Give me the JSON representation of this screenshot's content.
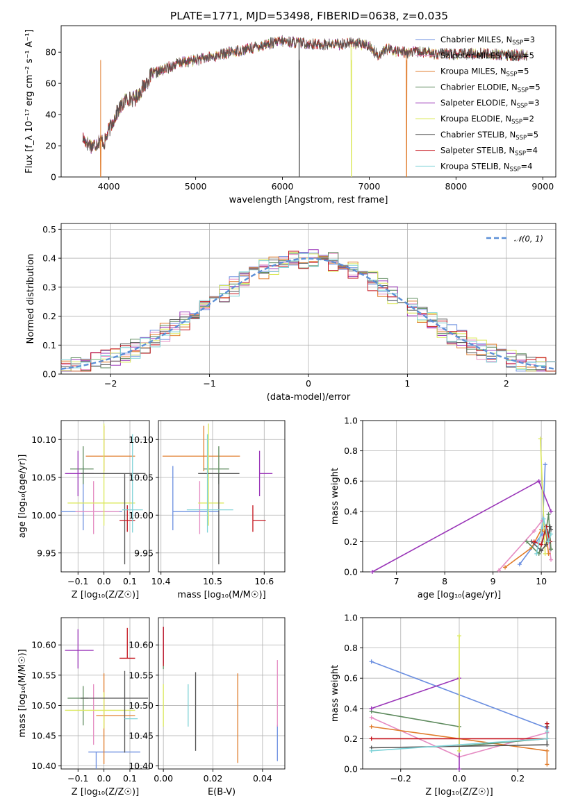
{
  "figure": {
    "title": "PLATE=1771, MJD=53498, FIBERID=0638, z=0.035"
  },
  "colors": {
    "Chabrier MILES": "#6a8ee0",
    "Salpeter MILES": "#e58bc2",
    "Kroupa MILES": "#e07b2a",
    "Chabrier ELODIE": "#5d8a5d",
    "Salpeter ELODIE": "#9a35b8",
    "Kroupa ELODIE": "#dbe85a",
    "Chabrier STELIB": "#555555",
    "Salpeter STELIB": "#c4131c",
    "Kroupa STELIB": "#7fd3d8"
  },
  "chart_data": [
    {
      "id": "spectrum",
      "type": "line",
      "title": "PLATE=1771, MJD=53498, FIBERID=0638, z=0.035",
      "xlabel": "wavelength [Angstrom, rest frame]",
      "ylabel": "Flux [f_λ 10⁻¹⁷ erg cm⁻² s⁻¹ A⁻¹]",
      "xlim": [
        3450,
        9150
      ],
      "ylim": [
        0,
        97
      ],
      "xticks": [
        4000,
        5000,
        6000,
        7000,
        8000,
        9000
      ],
      "yticks": [
        0,
        20,
        40,
        60,
        80
      ],
      "grid": false,
      "legend_position": "top-right",
      "legend": [
        {
          "name": "Chabrier MILES, N",
          "sub": "SSP",
          "suffix": "=3"
        },
        {
          "name": "Salpeter MILES, N",
          "sub": "SSP",
          "suffix": "=5"
        },
        {
          "name": "Kroupa MILES, N",
          "sub": "SSP",
          "suffix": "=5"
        },
        {
          "name": "Chabrier ELODIE, N",
          "sub": "SSP",
          "suffix": "=5"
        },
        {
          "name": "Salpeter ELODIE, N",
          "sub": "SSP",
          "suffix": "=3"
        },
        {
          "name": "Kroupa ELODIE, N",
          "sub": "SSP",
          "suffix": "=2"
        },
        {
          "name": "Chabrier STELIB, N",
          "sub": "SSP",
          "suffix": "=5"
        },
        {
          "name": "Salpeter STELIB, N",
          "sub": "SSP",
          "suffix": "=4"
        },
        {
          "name": "Kroupa STELIB, N",
          "sub": "SSP",
          "suffix": "=4"
        }
      ],
      "continuum_x": [
        3700,
        3750,
        3800,
        3850,
        3900,
        3950,
        4000,
        4100,
        4200,
        4300,
        4400,
        4500,
        4600,
        4800,
        5000,
        5200,
        5400,
        5600,
        5800,
        6000,
        6200,
        6400,
        6600,
        6800,
        7000,
        7100,
        7200,
        7400,
        7600,
        7800,
        8000,
        8200,
        8400,
        8600,
        8800
      ],
      "continuum_y": [
        25,
        22,
        20,
        21,
        24,
        22,
        30,
        42,
        50,
        50,
        58,
        66,
        68,
        73,
        75,
        77,
        80,
        82,
        85,
        87,
        86,
        85,
        85,
        86,
        84,
        78,
        82,
        80,
        80,
        79,
        79,
        79,
        79,
        78,
        78
      ],
      "drops": [
        {
          "x": 3905,
          "series": "Kroupa MILES"
        },
        {
          "x": 6195,
          "series": "Chabrier STELIB"
        },
        {
          "x": 6795,
          "series": "Kroupa ELODIE"
        },
        {
          "x": 7430,
          "series": "Kroupa MILES"
        }
      ]
    },
    {
      "id": "residual_histogram",
      "type": "line",
      "xlabel": "(data-model)/error",
      "ylabel": "Normed distribution",
      "xlim": [
        -2.5,
        2.5
      ],
      "ylim": [
        0,
        0.52
      ],
      "xticks": [
        -2,
        -1,
        0,
        1,
        2
      ],
      "yticks": [
        0.0,
        0.1,
        0.2,
        0.3,
        0.4,
        0.5
      ],
      "grid": true,
      "legend_position": "top-right",
      "reference_label": "𝒩(0, 1)",
      "bin_width": 0.1
    },
    {
      "id": "age_vs_Z",
      "type": "scatter",
      "xlabel": "Z [log₁₀(Z/Z☉)]",
      "ylabel": "age  [log₁₀(age/yr)]",
      "xlim": [
        -0.165,
        0.175
      ],
      "ylim": [
        9.925,
        10.125
      ],
      "xticks": [
        -0.1,
        0.0,
        0.1
      ],
      "yticks": [
        9.95,
        10.0,
        10.05,
        10.1
      ],
      "grid": true,
      "points": [
        {
          "series": "Chabrier MILES",
          "x": -0.08,
          "y": 10.005,
          "xerr": [
            0.1,
            0.15
          ],
          "yerr": [
            0.025,
            0.06
          ]
        },
        {
          "series": "Salpeter MILES",
          "x": -0.04,
          "y": 10.005,
          "xerr": [
            0.07,
            0.1
          ],
          "yerr": [
            0.03,
            0.04
          ]
        },
        {
          "series": "Kroupa MILES",
          "x": 0.0,
          "y": 10.078,
          "xerr": [
            0.07,
            0.12
          ],
          "yerr": [
            0.02,
            0.04
          ]
        },
        {
          "series": "Chabrier ELODIE",
          "x": -0.08,
          "y": 10.061,
          "xerr": [
            0.05,
            0.04
          ],
          "yerr": [
            0.02,
            0.03
          ]
        },
        {
          "series": "Salpeter ELODIE",
          "x": -0.1,
          "y": 10.055,
          "xerr": [
            0.05,
            0.06
          ],
          "yerr": [
            0.03,
            0.03
          ]
        },
        {
          "series": "Kroupa ELODIE",
          "x": 0.0,
          "y": 10.016,
          "xerr": [
            0.14,
            0.12
          ],
          "yerr": [
            0.03,
            0.105
          ]
        },
        {
          "series": "Chabrier STELIB",
          "x": 0.08,
          "y": 10.055,
          "xerr": [
            0.17,
            0.08
          ],
          "yerr": [
            0.12,
            0.0
          ]
        },
        {
          "series": "Salpeter STELIB",
          "x": 0.09,
          "y": 9.993,
          "xerr": [
            0.03,
            0.03
          ],
          "yerr": [
            0.015,
            0.02
          ]
        },
        {
          "series": "Kroupa STELIB",
          "x": 0.11,
          "y": 10.007,
          "xerr": [
            0.04,
            0.04
          ],
          "yerr": [
            0.03,
            0.1
          ]
        }
      ]
    },
    {
      "id": "age_vs_mass",
      "type": "scatter",
      "xlabel": "mass [log₁₀(M/M☉)]",
      "ylabel": "",
      "xlim": [
        10.395,
        10.64
      ],
      "ylim": [
        9.925,
        10.125
      ],
      "xticks": [
        10.4,
        10.5,
        10.6
      ],
      "yticks": [
        9.95,
        10.0,
        10.05,
        10.1
      ],
      "grid": true,
      "points": [
        {
          "series": "Chabrier MILES",
          "x": 10.423,
          "y": 10.005,
          "xerr": [
            0.0,
            0.09
          ],
          "yerr": [
            0.025,
            0.06
          ]
        },
        {
          "series": "Salpeter MILES",
          "x": 10.475,
          "y": 10.005,
          "xerr": [
            0.0,
            0.0
          ],
          "yerr": [
            0.03,
            0.04
          ]
        },
        {
          "series": "Kroupa MILES",
          "x": 10.483,
          "y": 10.078,
          "xerr": [
            0.08,
            0.07
          ],
          "yerr": [
            0.02,
            0.04
          ]
        },
        {
          "series": "Chabrier ELODIE",
          "x": 10.512,
          "y": 10.061,
          "xerr": [
            0.03,
            0.02
          ],
          "yerr": [
            0.02,
            0.03
          ]
        },
        {
          "series": "Salpeter ELODIE",
          "x": 10.591,
          "y": 10.055,
          "xerr": [
            0.0,
            0.025
          ],
          "yerr": [
            0.03,
            0.03
          ]
        },
        {
          "series": "Kroupa ELODIE",
          "x": 10.492,
          "y": 10.016,
          "xerr": [
            0.02,
            0.03
          ],
          "yerr": [
            0.03,
            0.105
          ]
        },
        {
          "series": "Chabrier STELIB",
          "x": 10.512,
          "y": 10.055,
          "xerr": [
            0.04,
            0.04
          ],
          "yerr": [
            0.12,
            0.0
          ]
        },
        {
          "series": "Salpeter STELIB",
          "x": 10.578,
          "y": 9.993,
          "xerr": [
            0.0,
            0.025
          ],
          "yerr": [
            0.015,
            0.02
          ]
        },
        {
          "series": "Kroupa STELIB",
          "x": 10.49,
          "y": 10.007,
          "xerr": [
            0.04,
            0.05
          ],
          "yerr": [
            0.03,
            0.1
          ]
        }
      ]
    },
    {
      "id": "mass_weight_vs_age",
      "type": "line",
      "xlabel": "age  [log₁₀(age/yr)]",
      "ylabel": "mass weight",
      "xlim": [
        6.3,
        10.3
      ],
      "ylim": [
        0,
        1.0
      ],
      "xticks": [
        7,
        8,
        9,
        10
      ],
      "yticks": [
        0.0,
        0.2,
        0.4,
        0.6,
        0.8,
        1.0
      ],
      "grid": true,
      "series": [
        {
          "name": "Chabrier MILES",
          "x": [
            9.55,
            10.02,
            10.08
          ],
          "y": [
            0.05,
            0.25,
            0.71
          ]
        },
        {
          "name": "Salpeter MILES",
          "x": [
            9.12,
            9.85,
            10.02,
            10.15,
            10.2
          ],
          "y": [
            0.01,
            0.27,
            0.34,
            0.22,
            0.08
          ]
        },
        {
          "name": "Kroupa MILES",
          "x": [
            9.25,
            9.8,
            10.0,
            10.1,
            10.15
          ],
          "y": [
            0.03,
            0.16,
            0.28,
            0.25,
            0.12
          ]
        },
        {
          "name": "Chabrier ELODIE",
          "x": [
            9.7,
            9.95,
            10.1,
            10.15,
            10.2
          ],
          "y": [
            0.2,
            0.12,
            0.28,
            0.38,
            0.15
          ]
        },
        {
          "name": "Salpeter ELODIE",
          "x": [
            6.5,
            9.95,
            10.2
          ],
          "y": [
            0.0,
            0.6,
            0.4
          ]
        },
        {
          "name": "Kroupa ELODIE",
          "x": [
            9.98,
            10.08
          ],
          "y": [
            0.88,
            0.12
          ]
        },
        {
          "name": "Chabrier STELIB",
          "x": [
            9.8,
            10.0,
            10.1,
            10.18,
            10.2
          ],
          "y": [
            0.2,
            0.14,
            0.18,
            0.3,
            0.28
          ]
        },
        {
          "name": "Salpeter STELIB",
          "x": [
            9.85,
            10.0,
            10.1,
            10.18
          ],
          "y": [
            0.2,
            0.18,
            0.3,
            0.2
          ]
        },
        {
          "name": "Kroupa STELIB",
          "x": [
            9.9,
            10.05,
            10.15,
            10.2
          ],
          "y": [
            0.12,
            0.35,
            0.2,
            0.25
          ]
        }
      ]
    },
    {
      "id": "mass_vs_Z",
      "type": "scatter",
      "xlabel": "Z [log₁₀(Z/Z☉)]",
      "ylabel": "mass [log₁₀(M/M☉)]",
      "xlim": [
        -0.165,
        0.175
      ],
      "ylim": [
        10.395,
        10.645
      ],
      "xticks": [
        -0.1,
        0.0,
        0.1
      ],
      "yticks": [
        10.4,
        10.45,
        10.5,
        10.55,
        10.6
      ],
      "grid": true,
      "points": [
        {
          "series": "Chabrier MILES",
          "x": -0.03,
          "y": 10.423,
          "xerr": [
            0.03,
            0.17
          ],
          "yerr": [
            0.03,
            0.0
          ]
        },
        {
          "series": "Salpeter MILES",
          "x": -0.04,
          "y": 10.475,
          "xerr": [
            0.0,
            0.0
          ],
          "yerr": [
            0.04,
            0.06
          ]
        },
        {
          "series": "Kroupa MILES",
          "x": 0.0,
          "y": 10.483,
          "xerr": [
            0.03,
            0.12
          ],
          "yerr": [
            0.08,
            0.07
          ]
        },
        {
          "series": "Chabrier ELODIE",
          "x": -0.08,
          "y": 10.512,
          "xerr": [
            0.06,
            0.02
          ],
          "yerr": [
            0.045,
            0.02
          ]
        },
        {
          "series": "Salpeter ELODIE",
          "x": -0.1,
          "y": 10.591,
          "xerr": [
            0.05,
            0.06
          ],
          "yerr": [
            0.03,
            0.035
          ]
        },
        {
          "series": "Kroupa ELODIE",
          "x": 0.0,
          "y": 10.492,
          "xerr": [
            0.15,
            0.12
          ],
          "yerr": [
            0.03,
            0.03
          ]
        },
        {
          "series": "Chabrier STELIB",
          "x": 0.08,
          "y": 10.512,
          "xerr": [
            0.17,
            0.09
          ],
          "yerr": [
            0.09,
            0.045
          ]
        },
        {
          "series": "Salpeter STELIB",
          "x": 0.09,
          "y": 10.578,
          "xerr": [
            0.03,
            0.03
          ],
          "yerr": [
            0.0,
            0.05
          ]
        },
        {
          "series": "Kroupa STELIB",
          "x": 0.1,
          "y": 10.478,
          "xerr": [
            0.02,
            0.03
          ],
          "yerr": [
            0.0,
            0.0
          ]
        }
      ]
    },
    {
      "id": "mass_vs_EBV",
      "type": "scatter",
      "xlabel": "E(B-V)",
      "ylabel": "",
      "xlim": [
        -0.002,
        0.049
      ],
      "ylim": [
        10.395,
        10.645
      ],
      "xticks": [
        0.0,
        0.02,
        0.04
      ],
      "yticks": [
        10.4,
        10.45,
        10.5,
        10.55,
        10.6
      ],
      "grid": true,
      "points": [
        {
          "series": "Chabrier MILES",
          "x": 0.046,
          "y": 10.423,
          "xerr": [
            0,
            0
          ],
          "yerr": [
            0.015,
            0.045
          ]
        },
        {
          "series": "Salpeter MILES",
          "x": 0.046,
          "y": 10.475,
          "xerr": [
            0,
            0
          ],
          "yerr": [
            0.01,
            0.1
          ]
        },
        {
          "series": "Kroupa MILES",
          "x": 0.03,
          "y": 10.483,
          "xerr": [
            0,
            0
          ],
          "yerr": [
            0.078,
            0.07
          ]
        },
        {
          "series": "Chabrier ELODIE",
          "x": 0.0,
          "y": 10.595,
          "xerr": [
            0,
            0
          ],
          "yerr": [
            0.035,
            0.035
          ]
        },
        {
          "series": "Salpeter ELODIE",
          "x": 0.0,
          "y": 10.6,
          "xerr": [
            0,
            0
          ],
          "yerr": [
            0.03,
            0.03
          ]
        },
        {
          "series": "Kroupa ELODIE",
          "x": 0.0,
          "y": 10.495,
          "xerr": [
            0,
            0
          ],
          "yerr": [
            0.03,
            0.04
          ]
        },
        {
          "series": "Chabrier STELIB",
          "x": 0.013,
          "y": 10.49,
          "xerr": [
            0,
            0
          ],
          "yerr": [
            0.065,
            0.065
          ]
        },
        {
          "series": "Salpeter STELIB",
          "x": 0.0,
          "y": 10.598,
          "xerr": [
            0,
            0
          ],
          "yerr": [
            0.033,
            0.032
          ]
        },
        {
          "series": "Kroupa STELIB",
          "x": 0.01,
          "y": 10.49,
          "xerr": [
            0,
            0
          ],
          "yerr": [
            0.025,
            0.045
          ]
        }
      ]
    },
    {
      "id": "mass_weight_vs_Z",
      "type": "line",
      "xlabel": "Z [log₁₀(Z/Z☉)]",
      "ylabel": "mass weight",
      "xlim": [
        -0.33,
        0.33
      ],
      "ylim": [
        0,
        1.0
      ],
      "xticks": [
        -0.2,
        0.0,
        0.2
      ],
      "yticks": [
        0.0,
        0.2,
        0.4,
        0.6,
        0.8,
        1.0
      ],
      "grid": true,
      "series": [
        {
          "name": "Chabrier MILES",
          "x": [
            -0.3,
            0.3
          ],
          "y": [
            0.71,
            0.27
          ]
        },
        {
          "name": "Salpeter MILES",
          "x": [
            -0.3,
            0.0,
            0.3
          ],
          "y": [
            0.34,
            0.08,
            0.24
          ]
        },
        {
          "name": "Kroupa MILES",
          "x": [
            -0.3,
            0.3,
            0.3
          ],
          "y": [
            0.28,
            0.12,
            0.03
          ]
        },
        {
          "name": "Chabrier ELODIE",
          "x": [
            -0.3,
            0.0,
            0.0,
            0.3,
            0.3
          ],
          "y": [
            0.38,
            0.28,
            0.15,
            0.2,
            0.3
          ]
        },
        {
          "name": "Salpeter ELODIE",
          "x": [
            -0.3,
            0.0,
            0.0
          ],
          "y": [
            0.4,
            0.6,
            0.0
          ]
        },
        {
          "name": "Kroupa ELODIE",
          "x": [
            0.0,
            0.0
          ],
          "y": [
            0.88,
            0.12
          ]
        },
        {
          "name": "Chabrier STELIB",
          "x": [
            -0.3,
            0.3,
            0.3,
            0.3
          ],
          "y": [
            0.14,
            0.16,
            0.28,
            0.3
          ]
        },
        {
          "name": "Salpeter STELIB",
          "x": [
            -0.3,
            0.3,
            0.3
          ],
          "y": [
            0.2,
            0.2,
            0.3
          ]
        },
        {
          "name": "Kroupa STELIB",
          "x": [
            -0.3,
            0.3,
            0.3
          ],
          "y": [
            0.12,
            0.2,
            0.25
          ]
        }
      ]
    }
  ]
}
